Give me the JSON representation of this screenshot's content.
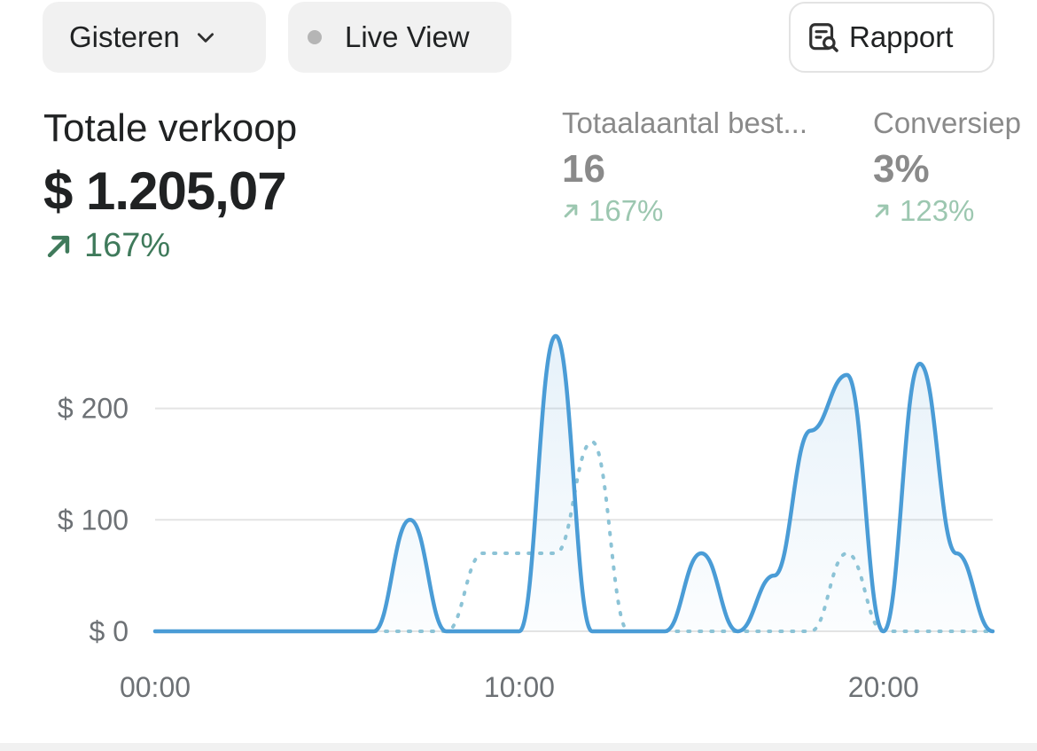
{
  "toolbar": {
    "period_label": "Gisteren",
    "live_label": "Live View",
    "report_label": "Rapport",
    "icons": {
      "period": "chevron-down-icon",
      "live": "status-dot-icon",
      "report": "report-search-icon"
    }
  },
  "metrics": {
    "main": {
      "label": "Totale verkoop",
      "value": "$ 1.205,07",
      "delta": "167%"
    },
    "orders": {
      "label": "Totaalaantal best...",
      "value": "16",
      "delta": "167%"
    },
    "conversion": {
      "label": "Conversiep",
      "value": "3%",
      "delta": "123%"
    }
  },
  "colors": {
    "accent": "#4a9cd6",
    "positive": "#3f7a5b",
    "positive_muted": "#9cc7b0",
    "comparison": "#8cc3d6"
  },
  "chart_data": {
    "type": "line",
    "x": [
      0,
      1,
      2,
      3,
      4,
      5,
      6,
      7,
      8,
      9,
      10,
      11,
      12,
      13,
      14,
      15,
      16,
      17,
      18,
      19,
      20,
      21,
      22,
      23
    ],
    "series": [
      {
        "values": [
          0,
          0,
          0,
          0,
          0,
          0,
          0,
          100,
          0,
          0,
          0,
          265,
          0,
          0,
          0,
          70,
          0,
          50,
          180,
          230,
          0,
          240,
          70,
          0
        ]
      },
      {
        "values": [
          0,
          0,
          0,
          0,
          0,
          0,
          0,
          0,
          0,
          70,
          70,
          70,
          170,
          0,
          0,
          0,
          0,
          0,
          0,
          70,
          0,
          0,
          0,
          0
        ]
      }
    ],
    "xticks": [
      "00:00",
      "10:00",
      "20:00"
    ],
    "yticks": [
      "$ 0",
      "$ 100",
      "$ 200"
    ],
    "ylim": [
      0,
      280
    ],
    "xlim": [
      0,
      23
    ],
    "grid": true,
    "legend": "none"
  }
}
